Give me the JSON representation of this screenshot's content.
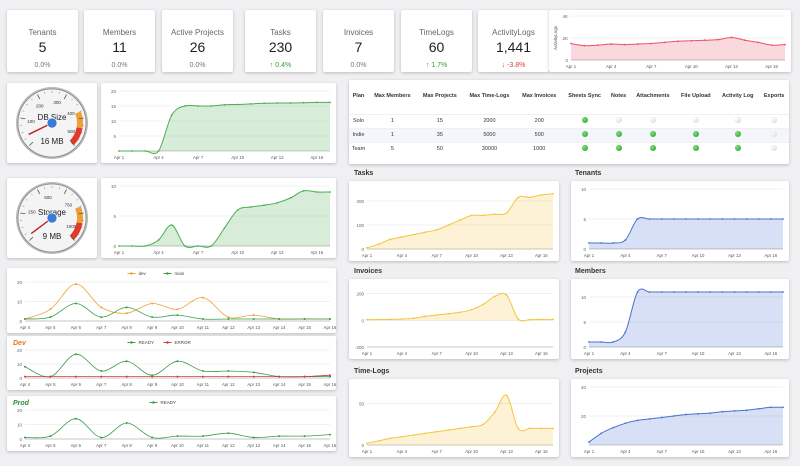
{
  "kpis": [
    {
      "label": "Tenants",
      "value": "5",
      "pct": "0.0%",
      "trend": "flat"
    },
    {
      "label": "Members",
      "value": "11",
      "pct": "0.0%",
      "trend": "flat"
    },
    {
      "label": "Active Projects",
      "value": "26",
      "pct": "0.0%",
      "trend": "flat"
    },
    {
      "label": "Tasks",
      "value": "230",
      "pct": "↑ 0.4%",
      "trend": "up"
    },
    {
      "label": "Invoices",
      "value": "7",
      "pct": "0.0%",
      "trend": "flat"
    },
    {
      "label": "TimeLogs",
      "value": "60",
      "pct": "↑ 1.7%",
      "trend": "up"
    },
    {
      "label": "ActivityLogs",
      "value": "1,441",
      "pct": "↓ -3.8%",
      "trend": "down"
    }
  ],
  "gauges": {
    "db": {
      "label": "DB Size",
      "value": "16 MB",
      "ticks": [
        "100",
        "200",
        "300",
        "400",
        "500"
      ],
      "level": 0.07
    },
    "storage": {
      "label": "Storage",
      "value": "9 MB",
      "ticks": [
        "250",
        "500",
        "750",
        "1000"
      ],
      "level": 0.03
    }
  },
  "date_ticks": [
    "Apr 1",
    "Apr 4",
    "Apr 7",
    "Apr 10",
    "Apr 13",
    "Apr 16"
  ],
  "date_ticks_daily": [
    "Apr 4",
    "Apr 5",
    "Apr 6",
    "Apr 7",
    "Apr 8",
    "Apr 9",
    "Apr 10",
    "Apr 11",
    "Apr 12",
    "Apr 13",
    "Apr 14",
    "Apr 15",
    "Apr 16"
  ],
  "plans": {
    "headers": [
      "Plan",
      "Max Members",
      "Max Projects",
      "Max Time-Logs",
      "Max Invoices",
      "Sheets Sync",
      "Notes",
      "Attachments",
      "File Upload",
      "Activity Log",
      "Exports"
    ],
    "rows": [
      {
        "plan": "Solo",
        "members": "1",
        "projects": "15",
        "timelogs": "2000",
        "invoices": "200",
        "features": [
          true,
          false,
          false,
          false,
          false,
          false
        ]
      },
      {
        "plan": "Indie",
        "members": "1",
        "projects": "35",
        "timelogs": "5000",
        "invoices": "500",
        "features": [
          true,
          true,
          true,
          true,
          true,
          false
        ]
      },
      {
        "plan": "Team",
        "members": "5",
        "projects": "50",
        "timelogs": "30000",
        "invoices": "1000",
        "features": [
          true,
          true,
          true,
          true,
          true,
          false
        ]
      }
    ]
  },
  "colors": {
    "green": "#4caf50",
    "red": "#e8546a",
    "orange": "#f0a030",
    "yellow": "#f5c542",
    "blue": "#4a73d1",
    "dev": "#f0a030",
    "main": "#3a9c4a",
    "error": "#d43b3b"
  },
  "chart_data": [
    {
      "id": "activity",
      "type": "area",
      "title": "",
      "ylabel": "ActivityLogs",
      "yticks": [
        "4K",
        "2K",
        "0"
      ],
      "ylim": [
        0,
        4000
      ],
      "x": [
        1,
        2,
        3,
        4,
        5,
        6,
        7,
        8,
        9,
        10,
        11,
        12,
        13,
        14,
        15,
        16,
        17
      ],
      "xticks": [
        "Apr 1",
        "Apr 4",
        "Apr 7",
        "Apr 10",
        "Apr 13",
        "Apr 16"
      ],
      "values": [
        1500,
        1300,
        1350,
        1450,
        1400,
        1450,
        1500,
        1600,
        1700,
        1750,
        1800,
        1850,
        2050,
        1800,
        1600,
        1350,
        1400
      ],
      "color": "#e8546a"
    },
    {
      "id": "db",
      "type": "area",
      "title": "",
      "yticks": [
        "20",
        "15",
        "10",
        "5"
      ],
      "ylim": [
        0,
        20
      ],
      "x": [
        1,
        2,
        3,
        4,
        5,
        6,
        7,
        8,
        9,
        10,
        11,
        12,
        13,
        14,
        15,
        16,
        17
      ],
      "xticks": [
        "Apr 1",
        "Apr 4",
        "Apr 7",
        "Apr 10",
        "Apr 13",
        "Apr 16"
      ],
      "values": [
        0,
        0,
        0,
        0,
        12,
        15,
        15,
        15,
        15.4,
        15.5,
        15.7,
        15.9,
        16,
        16,
        16.1,
        16.2,
        16.2
      ],
      "color": "#4caf50"
    },
    {
      "id": "storage",
      "type": "area",
      "title": "",
      "yticks": [
        "10",
        "5",
        "0"
      ],
      "ylim": [
        0,
        10
      ],
      "x": [
        1,
        2,
        3,
        4,
        5,
        6,
        7,
        8,
        9,
        10,
        11,
        12,
        13,
        14,
        15,
        16,
        17
      ],
      "xticks": [
        "Apr 1",
        "Apr 4",
        "Apr 7",
        "Apr 10",
        "Apr 13",
        "Apr 16"
      ],
      "values": [
        0,
        0,
        0,
        1,
        3.5,
        0,
        0,
        0,
        3,
        6,
        6.5,
        6.8,
        7.2,
        8,
        9.2,
        9,
        9
      ],
      "color": "#4caf50"
    },
    {
      "id": "builds",
      "type": "line",
      "title": "",
      "yticks": [
        "20",
        "10",
        "0"
      ],
      "ylim": [
        0,
        20
      ],
      "categories": [
        "Apr 4",
        "Apr 5",
        "Apr 6",
        "Apr 7",
        "Apr 8",
        "Apr 9",
        "Apr 10",
        "Apr 11",
        "Apr 12",
        "Apr 13",
        "Apr 14",
        "Apr 15",
        "Apr 16"
      ],
      "series": [
        {
          "name": "dev",
          "color": "#f0a030",
          "values": [
            1,
            6,
            19,
            7,
            4,
            9,
            6,
            12,
            2,
            3,
            1,
            1,
            1
          ]
        },
        {
          "name": "main",
          "color": "#3a9c4a",
          "values": [
            1,
            2,
            9,
            2,
            7,
            2,
            3,
            1,
            1,
            1,
            1,
            1,
            1
          ]
        }
      ]
    },
    {
      "id": "dev",
      "type": "line",
      "title": "Dev",
      "yticks": [
        "20",
        "10",
        "0"
      ],
      "ylim": [
        0,
        20
      ],
      "categories": [
        "Apr 4",
        "Apr 5",
        "Apr 6",
        "Apr 7",
        "Apr 8",
        "Apr 9",
        "Apr 10",
        "Apr 11",
        "Apr 12",
        "Apr 13",
        "Apr 14",
        "Apr 15",
        "Apr 16"
      ],
      "series": [
        {
          "name": "READY",
          "color": "#3a9c4a",
          "values": [
            8,
            1,
            17,
            5,
            12,
            2,
            12,
            5,
            5,
            4,
            1,
            1,
            1
          ]
        },
        {
          "name": "ERROR",
          "color": "#d43b3b",
          "values": [
            1,
            1,
            1,
            1,
            1,
            1,
            1,
            1,
            1,
            1,
            1,
            1,
            2
          ]
        }
      ]
    },
    {
      "id": "prod",
      "type": "line",
      "title": "Prod",
      "yticks": [
        "20",
        "10",
        "0"
      ],
      "ylim": [
        0,
        20
      ],
      "categories": [
        "Apr 4",
        "Apr 5",
        "Apr 6",
        "Apr 7",
        "Apr 8",
        "Apr 9",
        "Apr 10",
        "Apr 11",
        "Apr 12",
        "Apr 13",
        "Apr 14",
        "Apr 15",
        "Apr 16"
      ],
      "series": [
        {
          "name": "READY",
          "color": "#3a9c4a",
          "values": [
            1,
            2,
            14,
            1,
            11,
            1,
            2,
            2,
            4,
            1,
            2,
            2,
            3
          ]
        }
      ]
    },
    {
      "id": "tasks",
      "type": "area",
      "title": "Tasks",
      "yticks": [
        "200",
        "100",
        "0"
      ],
      "ylim": [
        0,
        250
      ],
      "x": [
        1,
        2,
        3,
        4,
        5,
        6,
        7,
        8,
        9,
        10,
        11,
        12,
        13,
        14,
        15,
        16,
        17
      ],
      "xticks": [
        "Apr 1",
        "Apr 4",
        "Apr 7",
        "Apr 10",
        "Apr 13",
        "Apr 16"
      ],
      "values": [
        5,
        20,
        40,
        50,
        60,
        70,
        80,
        100,
        120,
        140,
        140,
        145,
        150,
        215,
        215,
        225,
        230
      ],
      "color": "#f5c542"
    },
    {
      "id": "tenants",
      "type": "area",
      "title": "Tenants",
      "yticks": [
        "10",
        "5",
        "0"
      ],
      "ylim": [
        0,
        10
      ],
      "x": [
        1,
        2,
        3,
        4,
        5,
        6,
        7,
        8,
        9,
        10,
        11,
        12,
        13,
        14,
        15,
        16,
        17
      ],
      "xticks": [
        "Apr 1",
        "Apr 4",
        "Apr 7",
        "Apr 10",
        "Apr 13",
        "Apr 16"
      ],
      "values": [
        1,
        1,
        1,
        1.5,
        5,
        5,
        5,
        5,
        5,
        5,
        5,
        5,
        5,
        5,
        5,
        5,
        5
      ],
      "color": "#4a73d1"
    },
    {
      "id": "invoices",
      "type": "area",
      "title": "Invoices",
      "yticks": [
        "200",
        "0",
        "-200"
      ],
      "ylim": [
        -200,
        250
      ],
      "x": [
        1,
        2,
        3,
        4,
        5,
        6,
        7,
        8,
        9,
        10,
        11,
        12,
        13,
        14,
        15,
        16,
        17
      ],
      "xticks": [
        "Apr 1",
        "Apr 4",
        "Apr 7",
        "Apr 10",
        "Apr 13",
        "Apr 16"
      ],
      "values": [
        5,
        6,
        7,
        10,
        15,
        30,
        40,
        50,
        60,
        80,
        120,
        180,
        190,
        10,
        5,
        7,
        7
      ],
      "color": "#f5c542"
    },
    {
      "id": "members",
      "type": "area",
      "title": "Members",
      "yticks": [
        "10",
        "5",
        "0"
      ],
      "ylim": [
        0,
        12
      ],
      "x": [
        1,
        2,
        3,
        4,
        5,
        6,
        7,
        8,
        9,
        10,
        11,
        12,
        13,
        14,
        15,
        16,
        17
      ],
      "xticks": [
        "Apr 1",
        "Apr 4",
        "Apr 7",
        "Apr 10",
        "Apr 13",
        "Apr 16"
      ],
      "values": [
        1,
        1,
        1,
        3,
        11,
        11,
        11,
        11,
        11,
        11,
        11,
        11,
        11,
        11,
        11,
        11,
        11
      ],
      "color": "#4a73d1"
    },
    {
      "id": "timelogs",
      "type": "area",
      "title": "Time-Logs",
      "yticks": [
        "50",
        "0"
      ],
      "ylim": [
        0,
        70
      ],
      "x": [
        1,
        2,
        3,
        4,
        5,
        6,
        7,
        8,
        9,
        10,
        11,
        12,
        13,
        14,
        15,
        16,
        17
      ],
      "xticks": [
        "Apr 1",
        "Apr 4",
        "Apr 7",
        "Apr 10",
        "Apr 13",
        "Apr 16"
      ],
      "values": [
        2,
        5,
        8,
        10,
        12,
        14,
        16,
        18,
        20,
        22,
        25,
        40,
        60,
        20,
        20,
        20,
        20
      ],
      "color": "#f5c542"
    },
    {
      "id": "projects",
      "type": "area",
      "title": "Projects",
      "yticks": [
        "40",
        "20"
      ],
      "ylim": [
        0,
        40
      ],
      "x": [
        1,
        2,
        3,
        4,
        5,
        6,
        7,
        8,
        9,
        10,
        11,
        12,
        13,
        14,
        15,
        16,
        17
      ],
      "xticks": [
        "Apr 1",
        "Apr 4",
        "Apr 7",
        "Apr 10",
        "Apr 13",
        "Apr 16"
      ],
      "values": [
        2,
        8,
        12,
        15,
        17,
        18,
        19,
        20,
        21,
        21.5,
        22,
        23,
        23.5,
        24,
        25,
        26,
        26
      ],
      "color": "#4a73d1"
    }
  ]
}
